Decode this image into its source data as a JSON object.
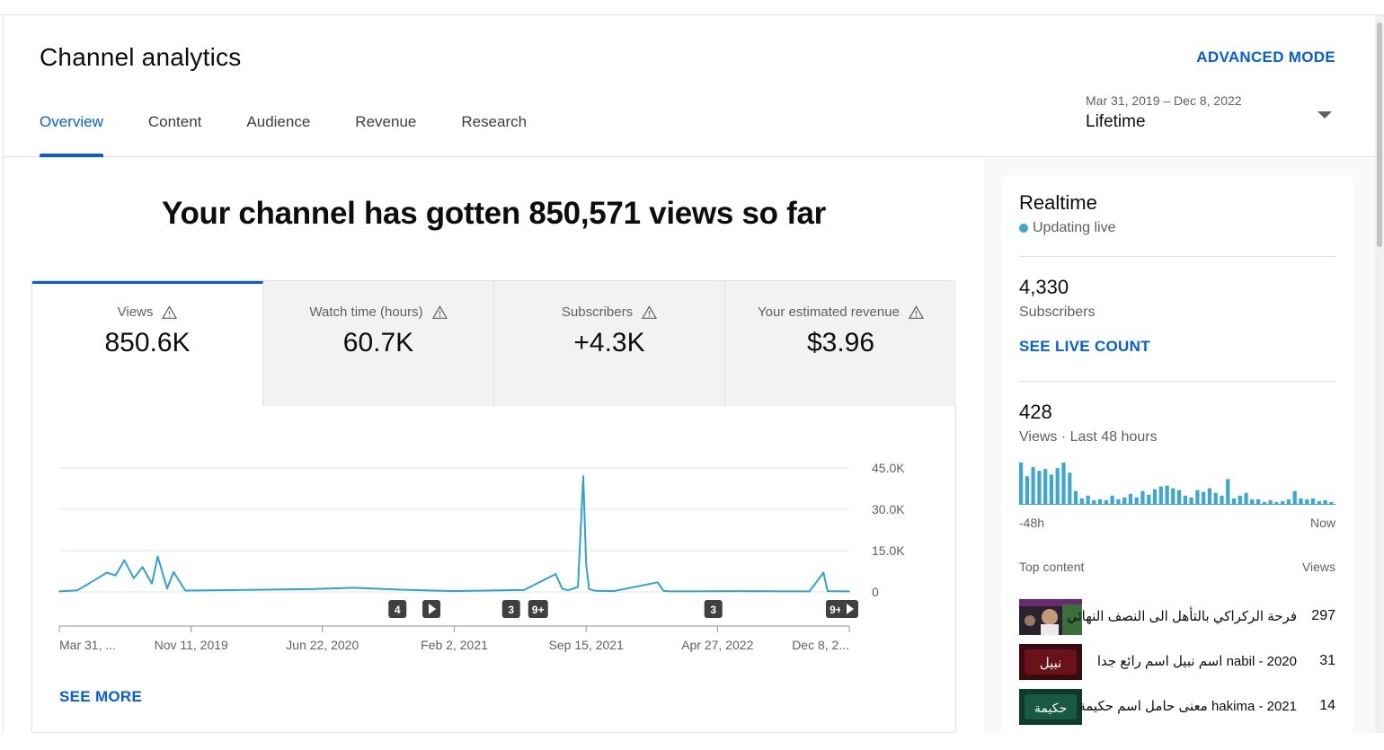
{
  "page": {
    "title": "Channel analytics",
    "advanced_mode": "ADVANCED MODE"
  },
  "tabs": [
    {
      "label": "Overview",
      "active": true
    },
    {
      "label": "Content",
      "active": false
    },
    {
      "label": "Audience",
      "active": false
    },
    {
      "label": "Revenue",
      "active": false
    },
    {
      "label": "Research",
      "active": false
    }
  ],
  "date_picker": {
    "range": "Mar 31, 2019 – Dec 8, 2022",
    "label": "Lifetime"
  },
  "headline": "Your channel has gotten 850,571 views so far",
  "metrics": [
    {
      "label": "Views",
      "value": "850.6K",
      "active": true
    },
    {
      "label": "Watch time (hours)",
      "value": "60.7K",
      "active": false
    },
    {
      "label": "Subscribers",
      "value": "+4.3K",
      "active": false
    },
    {
      "label": "Your estimated revenue",
      "value": "$3.96",
      "active": false
    }
  ],
  "chart_data": {
    "type": "line",
    "title": "",
    "xlabel": "",
    "ylabel": "",
    "ylim": [
      0,
      45000
    ],
    "y_ticks": [
      "45.0K",
      "30.0K",
      "15.0K",
      "0"
    ],
    "x_ticks": [
      "Mar 31, ...",
      "Nov 11, 2019",
      "Jun 22, 2020",
      "Feb 2, 2021",
      "Sep 15, 2021",
      "Apr 27, 2022",
      "Dec 8, 2..."
    ],
    "grid": true,
    "color": "#2fa3cf",
    "x": [
      "2019-03-31",
      "2019-05-01",
      "2019-06-01",
      "2019-06-20",
      "2019-07-05",
      "2019-07-20",
      "2019-08-05",
      "2019-08-20",
      "2019-09-05",
      "2019-09-15",
      "2019-10-01",
      "2019-10-12",
      "2019-11-01",
      "2020-06-01",
      "2020-08-15",
      "2020-11-01",
      "2021-02-02",
      "2021-06-01",
      "2021-07-25",
      "2021-08-05",
      "2021-08-15",
      "2021-09-01",
      "2021-09-10",
      "2021-09-15",
      "2021-09-20",
      "2021-10-01",
      "2021-11-01",
      "2022-01-15",
      "2022-01-25",
      "2022-02-05",
      "2022-06-01",
      "2022-10-01",
      "2022-10-25",
      "2022-11-01",
      "2022-12-08"
    ],
    "values": [
      200,
      600,
      4500,
      7000,
      6000,
      11500,
      5000,
      9000,
      3000,
      12800,
      1200,
      7200,
      500,
      1000,
      1500,
      800,
      300,
      700,
      6500,
      1200,
      600,
      1800,
      42000,
      10000,
      1000,
      400,
      300,
      3500,
      400,
      200,
      300,
      200,
      7000,
      300,
      200
    ],
    "annotations": [
      {
        "label": "4",
        "date": "2020-10-28"
      },
      {
        "label": "",
        "icon": "play",
        "date": "2020-12-25"
      },
      {
        "label": "3",
        "date": "2021-05-10"
      },
      {
        "label": "9+",
        "date": "2021-06-25"
      },
      {
        "label": "3",
        "date": "2022-04-20"
      },
      {
        "label": "9+",
        "date": "2022-11-15"
      },
      {
        "label": "",
        "icon": "play",
        "date": "2022-12-08"
      }
    ]
  },
  "see_more": "SEE MORE",
  "realtime": {
    "title": "Realtime",
    "status": "Updating live",
    "subscribers_count": "4,330",
    "subscribers_label": "Subscribers",
    "see_live_count": "SEE LIVE COUNT",
    "views_count": "428",
    "views_label": "Views · Last 48 hours",
    "axis_left": "-48h",
    "axis_right": "Now",
    "bars": [
      45,
      30,
      40,
      36,
      38,
      32,
      39,
      45,
      34,
      14,
      6,
      9,
      4,
      5,
      4,
      9,
      5,
      7,
      11,
      7,
      14,
      10,
      16,
      19,
      20,
      17,
      15,
      9,
      7,
      15,
      13,
      17,
      12,
      9,
      27,
      6,
      9,
      12,
      5,
      5,
      2,
      4,
      2,
      3,
      5,
      14,
      6,
      5,
      6,
      3,
      4,
      2
    ]
  },
  "top_content": {
    "header": "Top content",
    "views_header": "Views",
    "items": [
      {
        "title": "فرحة الركراكي بالتأهل الى النصف النهائي",
        "views": "297",
        "thumb_text": ""
      },
      {
        "title": "nabil - 2020 اسم نبيل اسم رائع جدا",
        "views": "31",
        "thumb_text": "نبيل"
      },
      {
        "title": "hakima - 2021 معنى حامل اسم حكيمة",
        "views": "14",
        "thumb_text": "حكيمة"
      }
    ]
  }
}
